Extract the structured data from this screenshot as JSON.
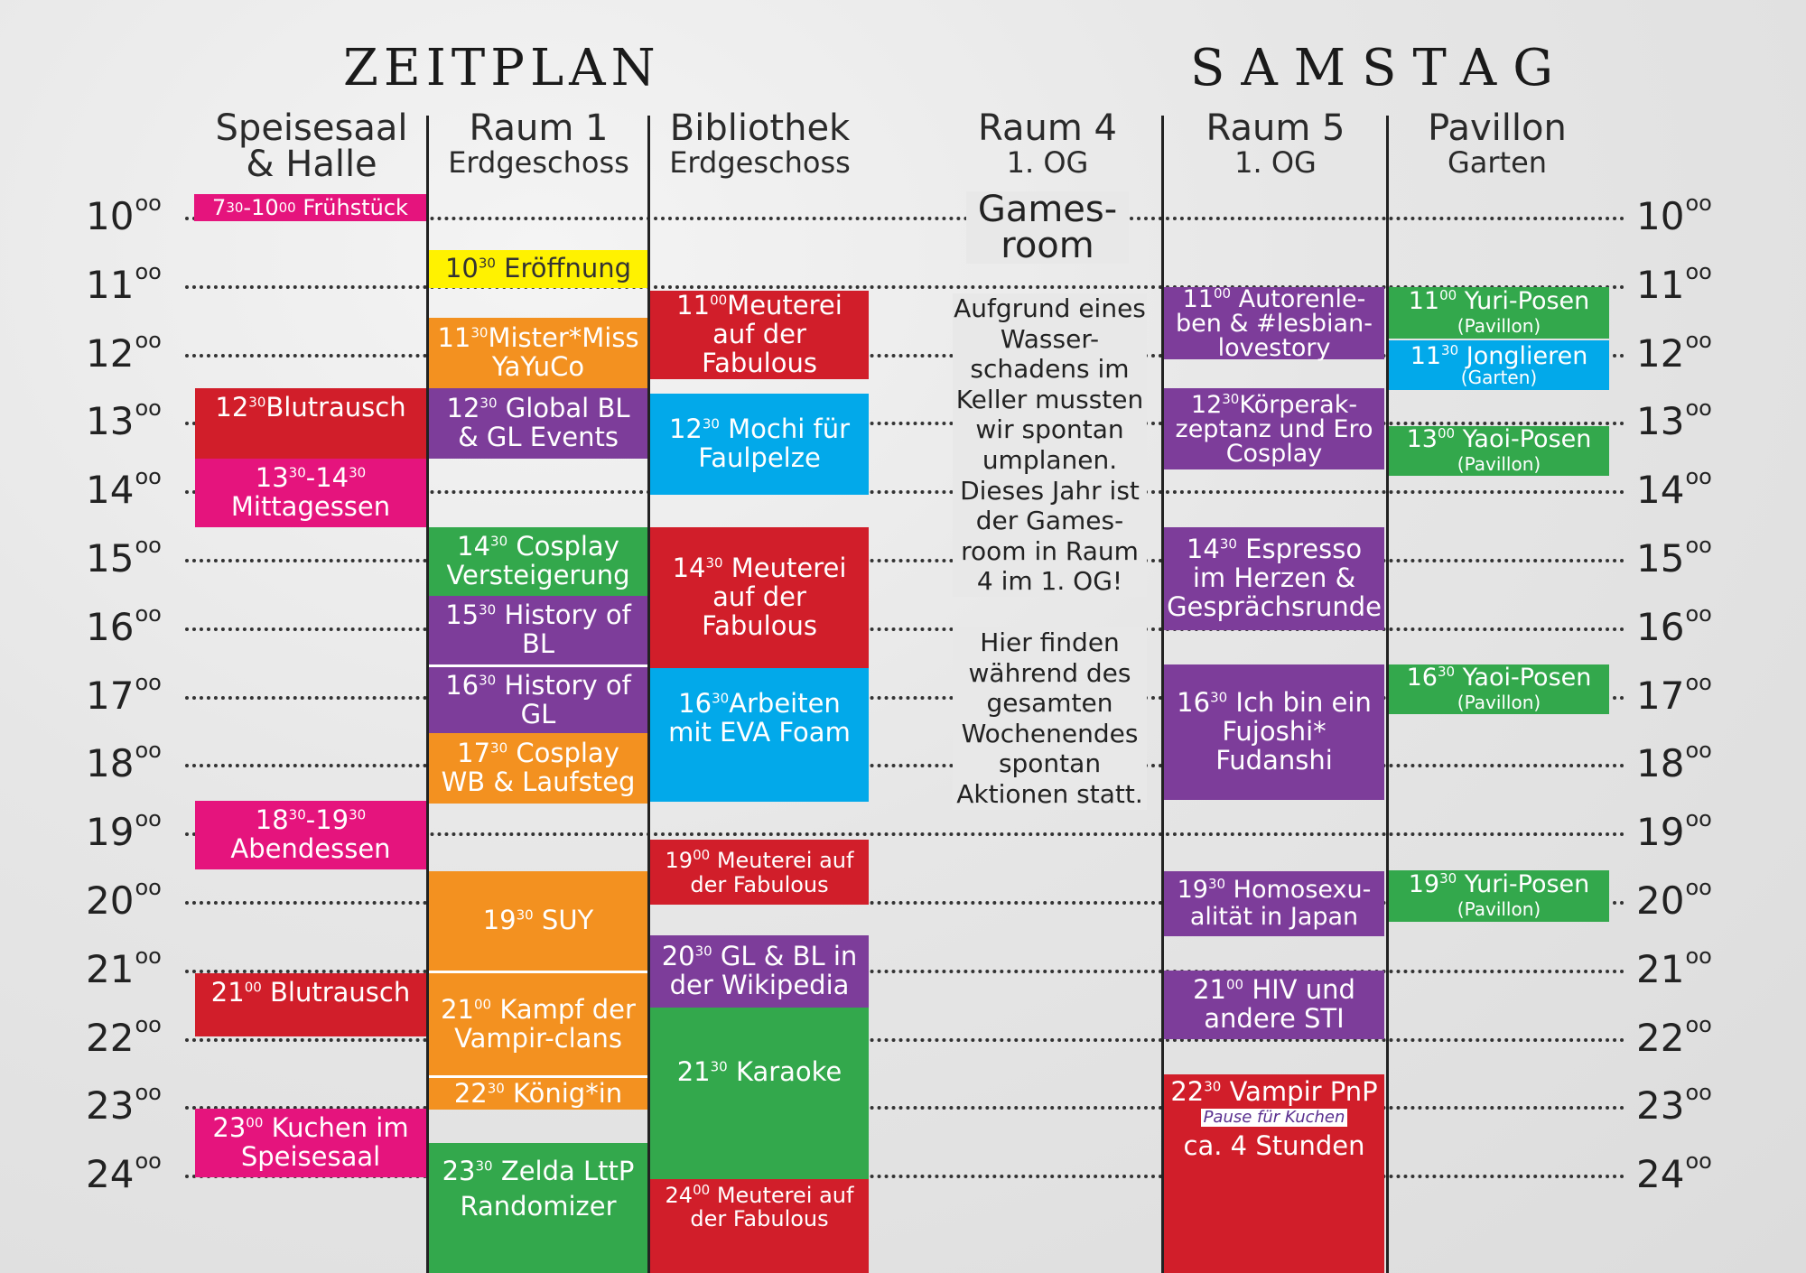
{
  "header": {
    "title_left": "Zeitplan",
    "title_right": "Samstag"
  },
  "columns": [
    {
      "name": "Speisesaal",
      "sub": "& Halle"
    },
    {
      "name": "Raum 1",
      "sub": "Erdgeschoss"
    },
    {
      "name": "Bibliothek",
      "sub": "Erdgeschoss"
    },
    {
      "name": "Raum 4",
      "sub": "1. OG"
    },
    {
      "name": "Raum 5",
      "sub": "1. OG"
    },
    {
      "name": "Pavillon",
      "sub": "Garten"
    }
  ],
  "hours": [
    "10",
    "11",
    "12",
    "13",
    "14",
    "15",
    "16",
    "17",
    "18",
    "19",
    "20",
    "21",
    "22",
    "23",
    "24"
  ],
  "hour_suffix": "oo",
  "gamesroom": {
    "title": "Games-room",
    "text1": "Aufgrund eines Wasser-schadens im Keller mussten wir spontan umplanen. Dieses Jahr ist der Games-room in Raum 4 im 1. OG!",
    "text2": "Hier finden während des gesamten Wochenendes spontan Aktionen statt."
  },
  "events": {
    "fruehstueck": {
      "t1": "7",
      "s1": "30",
      "sep": "-10",
      "s2": "00",
      "title": "Frühstück"
    },
    "blutrausch1": {
      "t": "12",
      "s": "30",
      "title": "Blutrausch"
    },
    "mittagessen": {
      "t1": "13",
      "s1": "30",
      "sep": "-14",
      "s2": "30",
      "title": "Mittagessen"
    },
    "abendessen": {
      "t1": "18",
      "s1": "30",
      "sep": "-19",
      "s2": "30",
      "title": "Abendessen"
    },
    "blutrausch2": {
      "t": "21",
      "s": "00",
      "title": "Blutrausch"
    },
    "kuchen": {
      "t": "23",
      "s": "00",
      "title": "Kuchen im Speisesaal"
    },
    "eroeffnung": {
      "t": "10",
      "s": "30",
      "title": "Eröffnung"
    },
    "mister": {
      "t": "11",
      "s": "30",
      "title": "Mister*Miss YaYuCo"
    },
    "global": {
      "t": "12",
      "s": "30",
      "title": "Global BL & GL Events"
    },
    "versteigerung": {
      "t": "14",
      "s": "30",
      "title": "Cosplay Versteigerung"
    },
    "historybl": {
      "t": "15",
      "s": "30",
      "title": "History of BL"
    },
    "historygl": {
      "t": "16",
      "s": "30",
      "title": "History of GL"
    },
    "cosplaywb": {
      "t": "17",
      "s": "30",
      "title": "Cosplay WB & Laufsteg"
    },
    "suy": {
      "t": "19",
      "s": "30",
      "title": "SUY"
    },
    "kampf": {
      "t": "21",
      "s": "00",
      "title": "Kampf der Vampir-clans"
    },
    "koenig": {
      "t": "22",
      "s": "30",
      "title": "König*in"
    },
    "zelda": {
      "t": "23",
      "s": "30",
      "title": "Zelda LttP Randomizer"
    },
    "meuterei1": {
      "t": "11",
      "s": "00",
      "title": "Meuterei auf der Fabulous"
    },
    "mochi": {
      "t": "12",
      "s": "30",
      "title": "Mochi für Faulpelze"
    },
    "meuterei2": {
      "t": "14",
      "s": "30",
      "title": "Meuterei auf der Fabulous"
    },
    "eva": {
      "t": "16",
      "s": "30",
      "title": "Arbeiten mit EVA Foam"
    },
    "meuterei3": {
      "t": "19",
      "s": "00",
      "title": "Meuterei auf der Fabulous"
    },
    "wikipedia": {
      "t": "20",
      "s": "30",
      "title": "GL & BL in der Wikipedia"
    },
    "karaoke": {
      "t": "21",
      "s": "30",
      "title": "Karaoke"
    },
    "meuterei4": {
      "t": "24",
      "s": "00",
      "title": "Meuterei auf der Fabulous"
    },
    "autoren": {
      "t": "11",
      "s": "00",
      "title": "Autorenle-ben & #lesbian-lovestory"
    },
    "koerper": {
      "t": "12",
      "s": "30",
      "title": "Körperak-zeptanz und Ero Cosplay"
    },
    "espresso": {
      "t": "14",
      "s": "30",
      "title": "Espresso im Herzen & Gesprächsrunde"
    },
    "fujoshi": {
      "t": "16",
      "s": "30",
      "title": "Ich bin ein Fujoshi* Fudanshi"
    },
    "homo": {
      "t": "19",
      "s": "30",
      "title": "Homosexu-alität in Japan"
    },
    "hiv": {
      "t": "21",
      "s": "00",
      "title": "HIV und andere STI"
    },
    "vampir": {
      "t": "22",
      "s": "30",
      "title": "Vampir PnP",
      "note": "Pause für Kuchen",
      "extra": "ca. 4 Stunden"
    },
    "yuri1": {
      "t": "11",
      "s": "00",
      "title": "Yuri-Posen",
      "loc": "(Pavillon)"
    },
    "jonglieren": {
      "t": "11",
      "s": "30",
      "title": "Jonglieren",
      "loc": "(Garten)"
    },
    "yaoi1": {
      "t": "13",
      "s": "00",
      "title": "Yaoi-Posen",
      "loc": "(Pavillon)"
    },
    "yaoi2": {
      "t": "16",
      "s": "30",
      "title": "Yaoi-Posen",
      "loc": "(Pavillon)"
    },
    "yuri2": {
      "t": "19",
      "s": "30",
      "title": "Yuri-Posen",
      "loc": "(Pavillon)"
    }
  },
  "colors": {
    "pink": "#e5147d",
    "red": "#d11e2a",
    "yellow": "#fff200",
    "orange": "#f39120",
    "purple": "#7d3d9a",
    "blue": "#02a9ea",
    "green": "#33a84c"
  }
}
